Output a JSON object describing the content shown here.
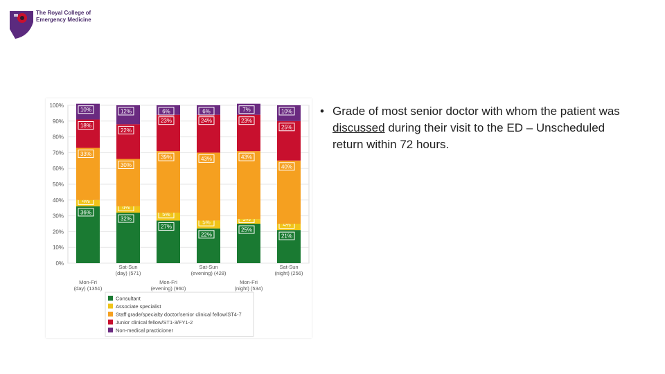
{
  "logo": {
    "line1": "The Royal College of",
    "line2": "Emergency Medicine"
  },
  "bullet": {
    "symbol": "•",
    "before": "Grade of most senior doctor with whom the patient was ",
    "underlined": "discussed",
    "after": " during their visit to the ED – Unscheduled return within 72 hours."
  },
  "chart_data": {
    "type": "bar",
    "stacked": true,
    "percent": true,
    "title": "",
    "xlabel": "",
    "ylabel": "",
    "ylim": [
      0,
      100
    ],
    "yticks": [
      "0%",
      "10%",
      "20%",
      "30%",
      "40%",
      "50%",
      "60%",
      "70%",
      "80%",
      "90%",
      "100%"
    ],
    "grid": true,
    "legend_position": "bottom",
    "categories": [
      [
        "Mon-Fri",
        "(day) (1351)"
      ],
      [
        "Sat-Sun",
        "(day) (571)"
      ],
      [
        "Mon-Fri",
        "(evening) (960)"
      ],
      [
        "Sat-Sun",
        "(evening) (428)"
      ],
      [
        "Mon-Fri",
        "(night) (534)"
      ],
      [
        "Sat-Sun",
        "(night) (256)"
      ]
    ],
    "series": [
      {
        "name": "Consultant",
        "color": "#1a7a32",
        "values": [
          36,
          32,
          27,
          22,
          25,
          21
        ],
        "labels": [
          "36%",
          "32%",
          "27%",
          "22%",
          "25%",
          "21%"
        ]
      },
      {
        "name": "Associate specialist",
        "color": "#f0c419",
        "values": [
          4,
          4,
          5,
          5,
          3,
          4
        ],
        "labels": [
          "4%",
          "4%",
          "5%",
          "5%",
          "3%",
          "4%"
        ]
      },
      {
        "name": "Staff grade/specialty doctor/senior clinical fellow/ST4-7",
        "color": "#f5a020",
        "values": [
          33,
          30,
          39,
          43,
          43,
          40
        ],
        "labels": [
          "33%",
          "30%",
          "39%",
          "43%",
          "43%",
          "40%"
        ]
      },
      {
        "name": "Junior clinical fellow/ST1-3/FY1-2",
        "color": "#c8102e",
        "values": [
          18,
          22,
          23,
          24,
          23,
          25
        ],
        "labels": [
          "18%",
          "22%",
          "23%",
          "24%",
          "23%",
          "25%"
        ]
      },
      {
        "name": "Non-medical practicioner",
        "color": "#6a2a80",
        "values": [
          10,
          12,
          6,
          6,
          7,
          10
        ],
        "labels": [
          "10%",
          "12%",
          "6%",
          "6%",
          "7%",
          "10%"
        ]
      }
    ]
  }
}
